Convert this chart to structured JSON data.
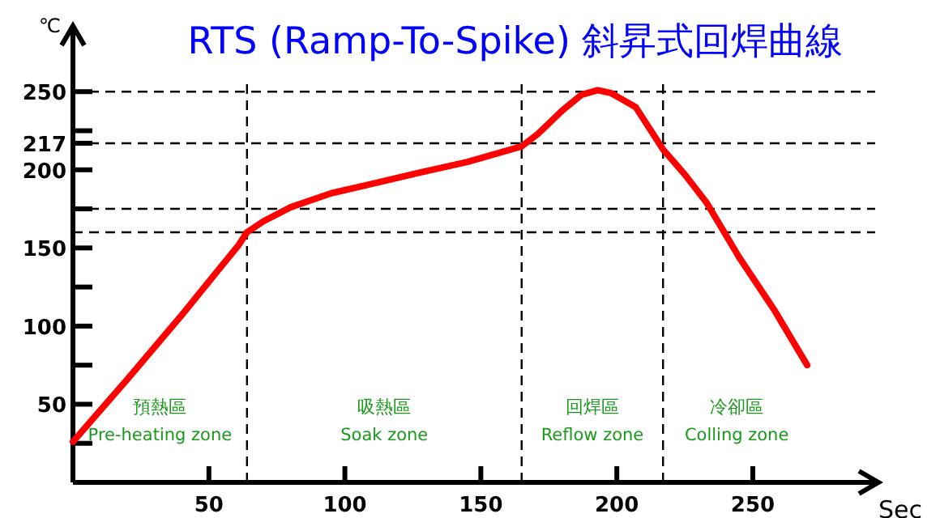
{
  "chart_data": {
    "type": "line",
    "title": "RTS (Ramp-To-Spike) 斜昇式回焊曲線",
    "xlabel": "Sec",
    "ylabel": "℃",
    "x": [
      0,
      20,
      40,
      61,
      64,
      70,
      80,
      95,
      110,
      127,
      145,
      165,
      171,
      180,
      187,
      193,
      198,
      207,
      217,
      225,
      233,
      245,
      258,
      270
    ],
    "series": [
      {
        "color": "#ff0000",
        "values": [
          26,
          66,
          107,
          152,
          160,
          167,
          176,
          185,
          191,
          198,
          205,
          215,
          223,
          238,
          248,
          251,
          249,
          240,
          213,
          197,
          179,
          144,
          110,
          75
        ]
      }
    ],
    "xlim": [
      0,
      295
    ],
    "ylim": [
      0,
      290
    ],
    "xticks": [
      50,
      100,
      150,
      200,
      250
    ],
    "yticks": [
      {
        "value": 25,
        "label": null
      },
      50,
      {
        "value": 75,
        "label": null
      },
      100,
      {
        "value": 125,
        "label": null
      },
      150,
      {
        "value": 175,
        "label": null
      },
      200,
      217,
      {
        "value": 225,
        "label": null
      },
      250
    ],
    "ref_lines": [
      {
        "axis": "y",
        "value": 250
      },
      {
        "axis": "y",
        "value": 217
      },
      {
        "axis": "y",
        "value": 175
      },
      {
        "axis": "y",
        "value": 160
      },
      {
        "axis": "x",
        "value": 64
      },
      {
        "axis": "x",
        "value": 165
      },
      {
        "axis": "x",
        "value": 217
      }
    ],
    "annotations": [
      "預熱區",
      "Pre-heating zone",
      "吸熱區",
      "Soak zone",
      "回焊區",
      "Reflow zone",
      "冷卻區",
      "Colling zone"
    ],
    "grid": false,
    "marker": "none",
    "line_style": "solid"
  }
}
